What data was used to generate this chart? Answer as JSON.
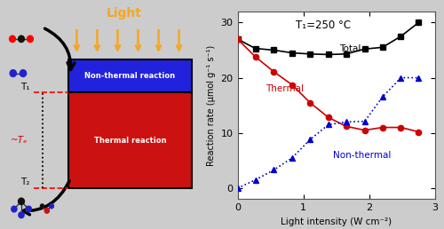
{
  "total_x": [
    0,
    0.27,
    0.55,
    0.83,
    1.1,
    1.38,
    1.65,
    1.93,
    2.2,
    2.48,
    2.75
  ],
  "total_y": [
    27.0,
    25.3,
    25.0,
    24.5,
    24.3,
    24.2,
    24.3,
    25.2,
    25.5,
    27.5,
    30.0
  ],
  "thermal_x": [
    0,
    0.27,
    0.55,
    0.83,
    1.1,
    1.38,
    1.65,
    1.93,
    2.2,
    2.48,
    2.75
  ],
  "thermal_y": [
    27.0,
    23.8,
    21.1,
    18.7,
    15.5,
    12.8,
    11.2,
    10.5,
    11.0,
    11.0,
    10.2
  ],
  "nonthermal_x": [
    0,
    0.27,
    0.55,
    0.83,
    1.1,
    1.38,
    1.65,
    1.93,
    2.2,
    2.48,
    2.75
  ],
  "nonthermal_y": [
    0.0,
    1.5,
    3.3,
    5.5,
    8.8,
    11.5,
    12.0,
    12.1,
    16.5,
    20.0,
    20.0
  ],
  "total_color": "#000000",
  "thermal_color": "#cc0000",
  "nonthermal_color": "#0000cc",
  "label_total": "Total",
  "label_thermal": "Thermal",
  "label_nonthermal": "Non-thermal",
  "xlabel": "Light intensity (W cm⁻²)",
  "ylabel": "Reaction rate (μmol g⁻¹ s⁻¹)",
  "xlim": [
    0,
    3
  ],
  "ylim": [
    -2,
    32
  ],
  "yticks": [
    0,
    10,
    20,
    30
  ],
  "xticks": [
    0,
    1,
    2,
    3
  ],
  "fig_bg": "#cccccc",
  "box_blue": "#2222dd",
  "box_red": "#cc1111",
  "light_color": "#f5a623",
  "light_title": "Light",
  "nonthermal_box_label": "Non-thermal reaction",
  "thermal_box_label": "Thermal reaction",
  "T1_label": "T₁",
  "T2_label": "T₂",
  "Te_label": "~Tₑ",
  "annotation": "T₁=250 °C"
}
